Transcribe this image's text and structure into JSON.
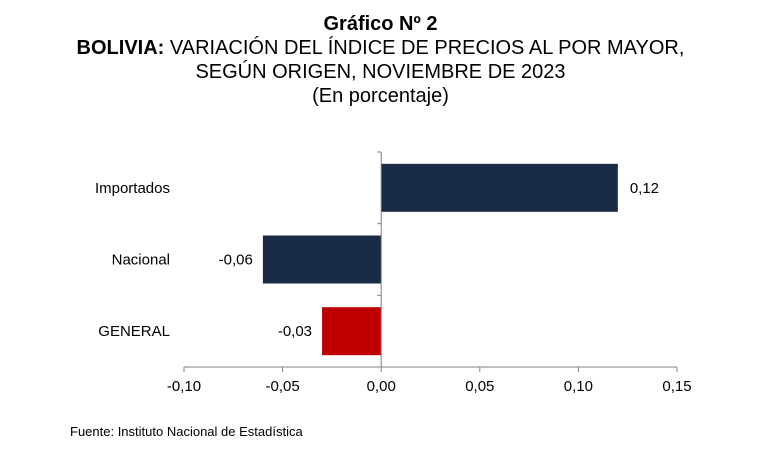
{
  "header": {
    "title": "Gráfico Nº 2",
    "subtitle_bold": "BOLIVIA:",
    "subtitle_rest": " VARIACIÓN DEL ÍNDICE DE PRECIOS AL POR MAYOR,",
    "subtitle_line2": "SEGÚN ORIGEN, NOVIEMBRE DE 2023",
    "unit": "(En porcentaje)"
  },
  "source": "Fuente: Instituto Nacional de Estadística",
  "chart_data": {
    "type": "bar",
    "orientation": "horizontal",
    "categories": [
      "Importados",
      "Nacional",
      "GENERAL"
    ],
    "values": [
      0.12,
      -0.06,
      -0.03
    ],
    "value_labels": [
      "0,12",
      "-0,06",
      "-0,03"
    ],
    "bar_colors": [
      "#1a2b48",
      "#1a2b48",
      "#c00000"
    ],
    "xlim": [
      -0.1,
      0.15
    ],
    "xticks": [
      -0.1,
      -0.05,
      0.0,
      0.05,
      0.1,
      0.15
    ],
    "xtick_labels": [
      "-0,10",
      "-0,05",
      "0,00",
      "0,05",
      "0,10",
      "0,15"
    ],
    "grid": false,
    "legend": "none"
  }
}
